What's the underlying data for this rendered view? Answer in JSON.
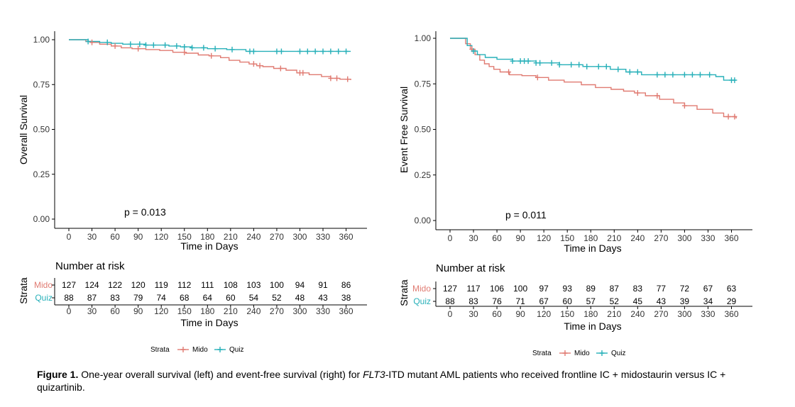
{
  "colors": {
    "mido": "#e07b72",
    "quiz": "#27b0b9"
  },
  "caption": {
    "label": "Figure 1.",
    "part1": " One-year overall survival (left) and event-free survival (right) for ",
    "gene": "FLT3",
    "part2": "-ITD mutant AML patients who received frontline IC + midostaurin versus IC + quizartinib."
  },
  "chart_data": [
    {
      "type": "line",
      "id": "os",
      "ylabel": "Overall Survival",
      "xlabel": "Time in Days",
      "xlim": [
        0,
        365
      ],
      "ylim": [
        0,
        1
      ],
      "xticks": [
        0,
        30,
        60,
        90,
        120,
        150,
        180,
        210,
        240,
        270,
        300,
        330,
        360
      ],
      "yticks": [
        "0.00",
        "0.25",
        "0.50",
        "0.75",
        "1.00"
      ],
      "pvalue": "p = 0.013",
      "series": [
        {
          "name": "Mido",
          "color": "#e07b72",
          "x": [
            0,
            22,
            28,
            40,
            55,
            68,
            82,
            100,
            118,
            135,
            152,
            168,
            182,
            197,
            208,
            222,
            234,
            244,
            252,
            266,
            282,
            296,
            312,
            328,
            340,
            352,
            366
          ],
          "y": [
            1.0,
            0.99,
            0.985,
            0.975,
            0.965,
            0.955,
            0.95,
            0.945,
            0.94,
            0.93,
            0.925,
            0.915,
            0.91,
            0.9,
            0.885,
            0.875,
            0.865,
            0.855,
            0.85,
            0.84,
            0.83,
            0.815,
            0.805,
            0.795,
            0.785,
            0.78,
            0.775
          ]
        },
        {
          "name": "Quiz",
          "color": "#27b0b9",
          "x": [
            0,
            25,
            40,
            55,
            70,
            100,
            130,
            145,
            160,
            180,
            205,
            230,
            366
          ],
          "y": [
            1.0,
            0.99,
            0.985,
            0.98,
            0.975,
            0.97,
            0.965,
            0.96,
            0.955,
            0.95,
            0.945,
            0.935,
            0.935
          ]
        }
      ],
      "censors": [
        {
          "series": "Mido",
          "x": [
            30,
            60,
            90,
            150,
            185,
            240,
            248,
            275,
            300,
            304,
            340,
            348,
            362
          ]
        },
        {
          "series": "Quiz",
          "x": [
            25,
            50,
            80,
            92,
            100,
            110,
            125,
            140,
            150,
            160,
            175,
            190,
            212,
            235,
            240,
            270,
            276,
            300,
            310,
            320,
            330,
            340,
            350,
            360
          ]
        }
      ],
      "risk_table": {
        "title": "Number at risk",
        "strata_label": "Strata",
        "rows": [
          {
            "name": "Mido",
            "values": [
              "127",
              "124",
              "122",
              "120",
              "119",
              "112",
              "111",
              "108",
              "103",
              "100",
              "94",
              "91",
              "86"
            ]
          },
          {
            "name": "Quiz",
            "values": [
              "88",
              "87",
              "83",
              "79",
              "74",
              "68",
              "64",
              "60",
              "54",
              "52",
              "48",
              "43",
              "38"
            ]
          }
        ],
        "xlabel": "Time in Days"
      },
      "legend": {
        "title": "Strata",
        "entries": [
          "Mido",
          "Quiz"
        ],
        "position": "bottom"
      }
    },
    {
      "type": "line",
      "id": "efs",
      "ylabel": "Event Free Survival",
      "xlabel": "Time in Days",
      "xlim": [
        0,
        365
      ],
      "ylim": [
        0,
        1
      ],
      "xticks": [
        0,
        30,
        60,
        90,
        120,
        150,
        180,
        210,
        240,
        270,
        300,
        330,
        360
      ],
      "yticks": [
        "0.00",
        "0.25",
        "0.50",
        "0.75",
        "1.00"
      ],
      "pvalue": "p = 0.011",
      "series": [
        {
          "name": "Mido",
          "color": "#e07b72",
          "x": [
            0,
            14,
            20,
            26,
            32,
            38,
            44,
            50,
            56,
            64,
            76,
            92,
            110,
            126,
            146,
            168,
            186,
            206,
            222,
            236,
            250,
            268,
            286,
            300,
            316,
            336,
            350,
            366
          ],
          "y": [
            1.0,
            1.0,
            0.97,
            0.94,
            0.91,
            0.88,
            0.86,
            0.845,
            0.83,
            0.815,
            0.8,
            0.795,
            0.785,
            0.77,
            0.76,
            0.745,
            0.73,
            0.72,
            0.71,
            0.7,
            0.685,
            0.665,
            0.645,
            0.63,
            0.61,
            0.59,
            0.57,
            0.56
          ]
        },
        {
          "name": "Quiz",
          "color": "#27b0b9",
          "x": [
            0,
            15,
            22,
            28,
            35,
            45,
            60,
            80,
            110,
            140,
            170,
            205,
            225,
            245,
            340,
            350,
            366
          ],
          "y": [
            1.0,
            1.0,
            0.96,
            0.93,
            0.91,
            0.895,
            0.885,
            0.875,
            0.865,
            0.855,
            0.845,
            0.83,
            0.815,
            0.8,
            0.79,
            0.77,
            0.77
          ]
        }
      ],
      "censors": [
        {
          "series": "Mido",
          "x": [
            28,
            75,
            112,
            240,
            265,
            300,
            356,
            364
          ]
        },
        {
          "series": "Quiz",
          "x": [
            30,
            80,
            90,
            95,
            100,
            110,
            115,
            130,
            140,
            155,
            165,
            175,
            190,
            200,
            215,
            230,
            240,
            265,
            275,
            285,
            300,
            310,
            320,
            332,
            360,
            364
          ]
        }
      ],
      "risk_table": {
        "title": "Number at risk",
        "strata_label": "Strata",
        "rows": [
          {
            "name": "Mido",
            "values": [
              "127",
              "117",
              "106",
              "100",
              "97",
              "93",
              "89",
              "87",
              "83",
              "77",
              "72",
              "67",
              "63"
            ]
          },
          {
            "name": "Quiz",
            "values": [
              "88",
              "83",
              "76",
              "71",
              "67",
              "60",
              "57",
              "52",
              "45",
              "43",
              "39",
              "34",
              "29"
            ]
          }
        ],
        "xlabel": "Time in Days"
      },
      "legend": {
        "title": "Strata",
        "entries": [
          "Mido",
          "Quiz"
        ],
        "position": "bottom"
      }
    }
  ]
}
